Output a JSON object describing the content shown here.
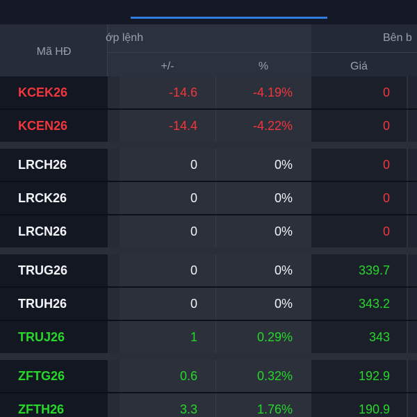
{
  "header": {
    "code": "Mã HĐ",
    "match_group": "ớp lệnh",
    "buy_group": "Bên b",
    "change": "+/-",
    "percent": "%",
    "price": "Giá"
  },
  "groups": [
    {
      "rows": [
        [
          "KCEK26",
          "-14.6",
          "-4.19%",
          "0"
        ],
        [
          "KCEN26",
          "-14.4",
          "-4.22%",
          "0"
        ]
      ]
    },
    {
      "rows": [
        [
          "LRCH26",
          "0",
          "0%",
          "0"
        ],
        [
          "LRCK26",
          "0",
          "0%",
          "0"
        ],
        [
          "LRCN26",
          "0",
          "0%",
          "0"
        ]
      ]
    },
    {
      "rows": [
        [
          "TRUG26",
          "0",
          "0%",
          "339.7"
        ],
        [
          "TRUH26",
          "0",
          "0%",
          "343.2"
        ],
        [
          "TRUJ26",
          "1",
          "0.29%",
          "343"
        ]
      ]
    },
    {
      "rows": [
        [
          "ZFTG26",
          "0.6",
          "0.32%",
          "192.9"
        ],
        [
          "ZFTH26",
          "3.3",
          "1.76%",
          "190.9"
        ]
      ]
    }
  ]
}
